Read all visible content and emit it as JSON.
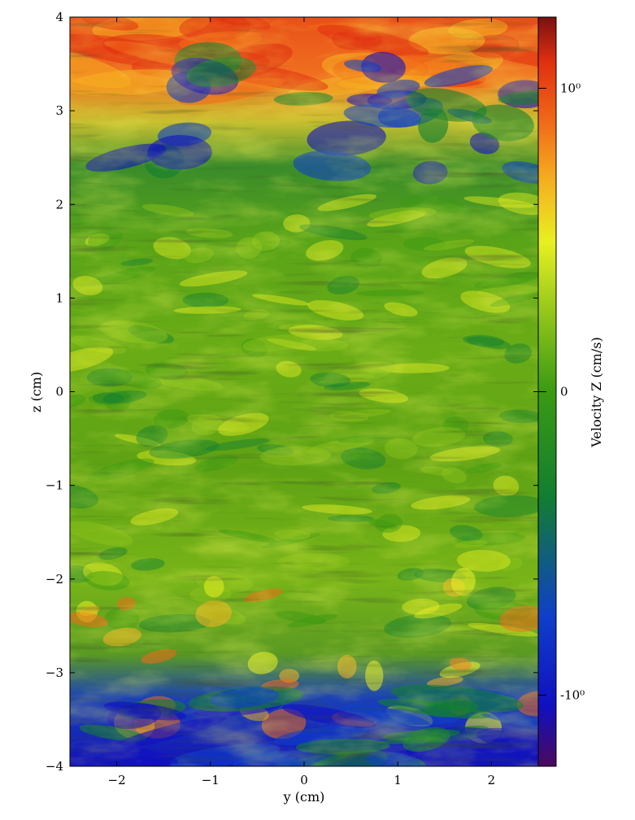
{
  "chart_data": {
    "type": "heatmap",
    "title": "",
    "xlabel": "y  (cm)",
    "ylabel": "z  (cm)",
    "xlim": [
      -2.5,
      2.5
    ],
    "ylim": [
      -4,
      4
    ],
    "x_ticks": [
      -2,
      -1,
      0,
      1,
      2
    ],
    "x_tick_labels": [
      "−2",
      "−1",
      "0",
      "1",
      "2"
    ],
    "y_ticks": [
      -4,
      -3,
      -2,
      -1,
      0,
      1,
      2,
      3,
      4
    ],
    "y_tick_labels": [
      "−4",
      "−3",
      "−2",
      "−1",
      "0",
      "1",
      "2",
      "3",
      "4"
    ],
    "colorbar": {
      "label": "Velocity Z  (cm/s)",
      "ticks": [
        {
          "label": "10⁰",
          "value": 1
        },
        {
          "label": "0",
          "value": 0
        },
        {
          "label": "-10⁰",
          "value": -1
        }
      ],
      "colors": [
        "#4b0a5c",
        "#1010c0",
        "#0f3fc8",
        "#127e30",
        "#3a9a12",
        "#8ec41a",
        "#e8f020",
        "#f5b020",
        "#f06a18",
        "#e03010",
        "#7a1010"
      ]
    },
    "field_regions": [
      {
        "region": "top",
        "z_range": [
          2.5,
          4
        ],
        "dominant_value": "positive (orange/red)"
      },
      {
        "region": "upper-middle",
        "z_range": [
          2,
          3.5
        ],
        "dominant_value": "negative patches (blue)"
      },
      {
        "region": "middle",
        "z_range": [
          -2.5,
          2
        ],
        "dominant_value": "near zero (green/yellow)"
      },
      {
        "region": "bottom",
        "z_range": [
          -4,
          -3
        ],
        "dominant_value": "negative (blue)"
      }
    ],
    "grid": false
  }
}
